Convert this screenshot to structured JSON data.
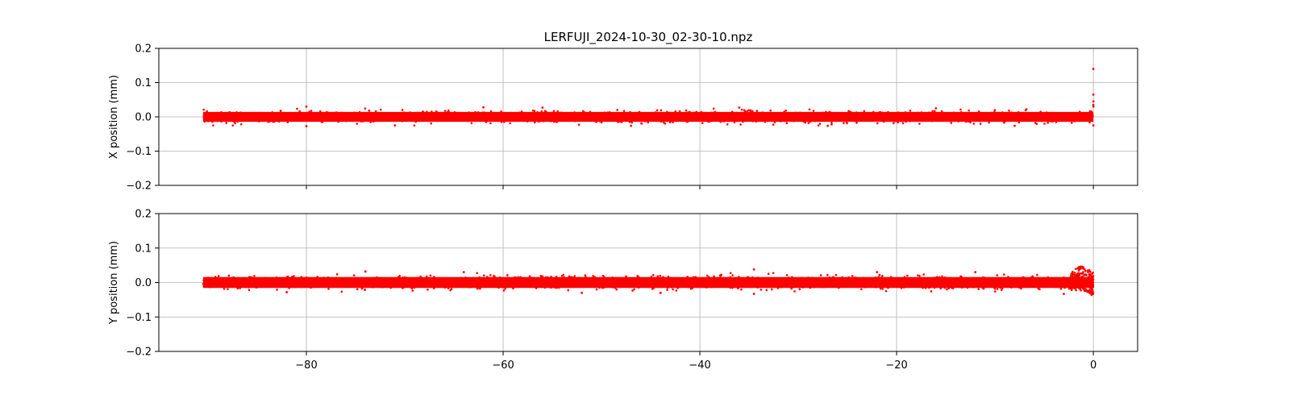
{
  "figure": {
    "title": "LERFUJI_2024-10-30_02-30-10.npz"
  },
  "chart_data": [
    {
      "type": "scatter",
      "panel": "top",
      "title": "LERFUJI_2024-10-30_02-30-10.npz",
      "xlabel": "",
      "ylabel": "X position (mm)",
      "xlim": [
        -95,
        4.5
      ],
      "ylim": [
        -0.2,
        0.2
      ],
      "xticks": [
        -80,
        -60,
        -40,
        -20,
        0
      ],
      "xtick_labels": [],
      "yticks": [
        -0.2,
        -0.1,
        0.0,
        0.1,
        0.2
      ],
      "ytick_labels": [
        "−0.2",
        "−0.1",
        "0.0",
        "0.1",
        "0.2"
      ],
      "grid": true,
      "marker_color": "#ff0000",
      "series": [
        {
          "x_range": [
            -90.5,
            0
          ],
          "band": [
            -0.02,
            0.02
          ],
          "outliers": [
            [
              -80,
              0.03
            ],
            [
              -80,
              -0.027
            ],
            [
              -62,
              0.028
            ],
            [
              -71,
              -0.025
            ],
            [
              -56,
              0.027
            ],
            [
              -47,
              -0.026
            ],
            [
              -36,
              0.027
            ],
            [
              -27,
              -0.026
            ],
            [
              -16,
              0.025
            ],
            [
              -8,
              -0.026
            ],
            [
              0,
              0.14
            ],
            [
              0,
              0.065
            ],
            [
              0,
              0.045
            ],
            [
              0,
              0.035
            ],
            [
              0,
              0.03
            ],
            [
              0,
              -0.025
            ]
          ]
        }
      ]
    },
    {
      "type": "scatter",
      "panel": "bottom",
      "xlabel": "",
      "ylabel": "Y position (mm)",
      "xlim": [
        -95,
        4.5
      ],
      "ylim": [
        -0.2,
        0.2
      ],
      "xticks": [
        -80,
        -60,
        -40,
        -20,
        0
      ],
      "xtick_labels": [
        "−80",
        "−60",
        "−40",
        "−20",
        "0"
      ],
      "yticks": [
        -0.2,
        -0.1,
        0.0,
        0.1,
        0.2
      ],
      "ytick_labels": [
        "−0.2",
        "−0.1",
        "0.0",
        "0.1",
        "0.2"
      ],
      "grid": true,
      "marker_color": "#ff0000",
      "series": [
        {
          "x_range": [
            -90.5,
            0
          ],
          "band": [
            -0.022,
            0.022
          ],
          "feature": {
            "x_range": [
              -2.5,
              0
            ],
            "band": [
              -0.04,
              0.048
            ]
          },
          "outliers": [
            [
              -34.5,
              0.038
            ],
            [
              -34.5,
              -0.033
            ],
            [
              -74,
              0.032
            ],
            [
              -52,
              -0.03
            ],
            [
              -64,
              0.03
            ],
            [
              -22,
              0.03
            ],
            [
              -12,
              0.03
            ],
            [
              -3,
              -0.033
            ],
            [
              -82,
              -0.028
            ],
            [
              -44,
              -0.03
            ]
          ]
        }
      ]
    }
  ]
}
